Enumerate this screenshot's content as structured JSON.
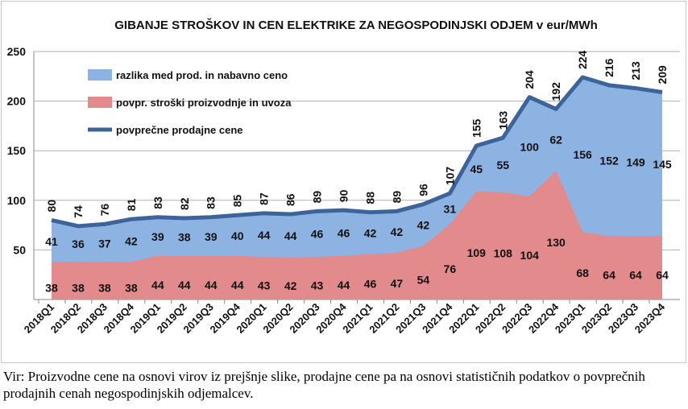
{
  "chart_data": {
    "type": "area",
    "title": "GIBANJE STROŠKOV IN CEN ELEKTRIKE ZA NEGOSPODINJSKI ODJEM v eur/MWh",
    "xlabel": "",
    "ylabel": "",
    "ylim": [
      0,
      250
    ],
    "yticks": [
      50,
      100,
      150,
      200,
      250
    ],
    "grid": true,
    "legend_position": "top-left",
    "categories": [
      "2018Q1",
      "2018Q2",
      "2018Q3",
      "2018Q4",
      "2019Q1",
      "2019Q2",
      "2019Q3",
      "2019Q4",
      "2020Q1",
      "2020Q2",
      "2020Q3",
      "2020Q4",
      "2021Q1",
      "2021Q2",
      "2021Q3",
      "2021Q4",
      "2022Q1",
      "2022Q2",
      "2022Q3",
      "2022Q4",
      "2023Q1",
      "2023Q2",
      "2023Q3",
      "2023Q4"
    ],
    "series": [
      {
        "name": "razlika med prod. in nabavno ceno",
        "type": "stacked-area",
        "color": "#8db3e2",
        "values": [
          41,
          36,
          37,
          42,
          39,
          38,
          39,
          40,
          44,
          44,
          46,
          46,
          42,
          42,
          42,
          31,
          45,
          55,
          100,
          62,
          156,
          152,
          149,
          145
        ]
      },
      {
        "name": "povpr. stroški proizvodnje in uvoza",
        "type": "stacked-area",
        "color": "#e38a8c",
        "values": [
          38,
          38,
          38,
          38,
          44,
          44,
          44,
          44,
          43,
          42,
          43,
          44,
          46,
          47,
          54,
          76,
          109,
          108,
          104,
          130,
          68,
          64,
          64,
          64
        ]
      },
      {
        "name": "povprečne prodajne cene",
        "type": "line",
        "color": "#3c649a",
        "values": [
          80,
          74,
          76,
          81,
          83,
          82,
          83,
          85,
          87,
          86,
          89,
          90,
          88,
          89,
          96,
          107,
          155,
          163,
          204,
          192,
          224,
          216,
          213,
          209
        ]
      }
    ]
  },
  "caption": "Vir: Proizvodne cene na osnovi virov iz prejšnje slike, prodajne cene pa na osnovi statističnih podatkov o povprečnih prodajnih cenah negospodinjskih odjemalcev."
}
